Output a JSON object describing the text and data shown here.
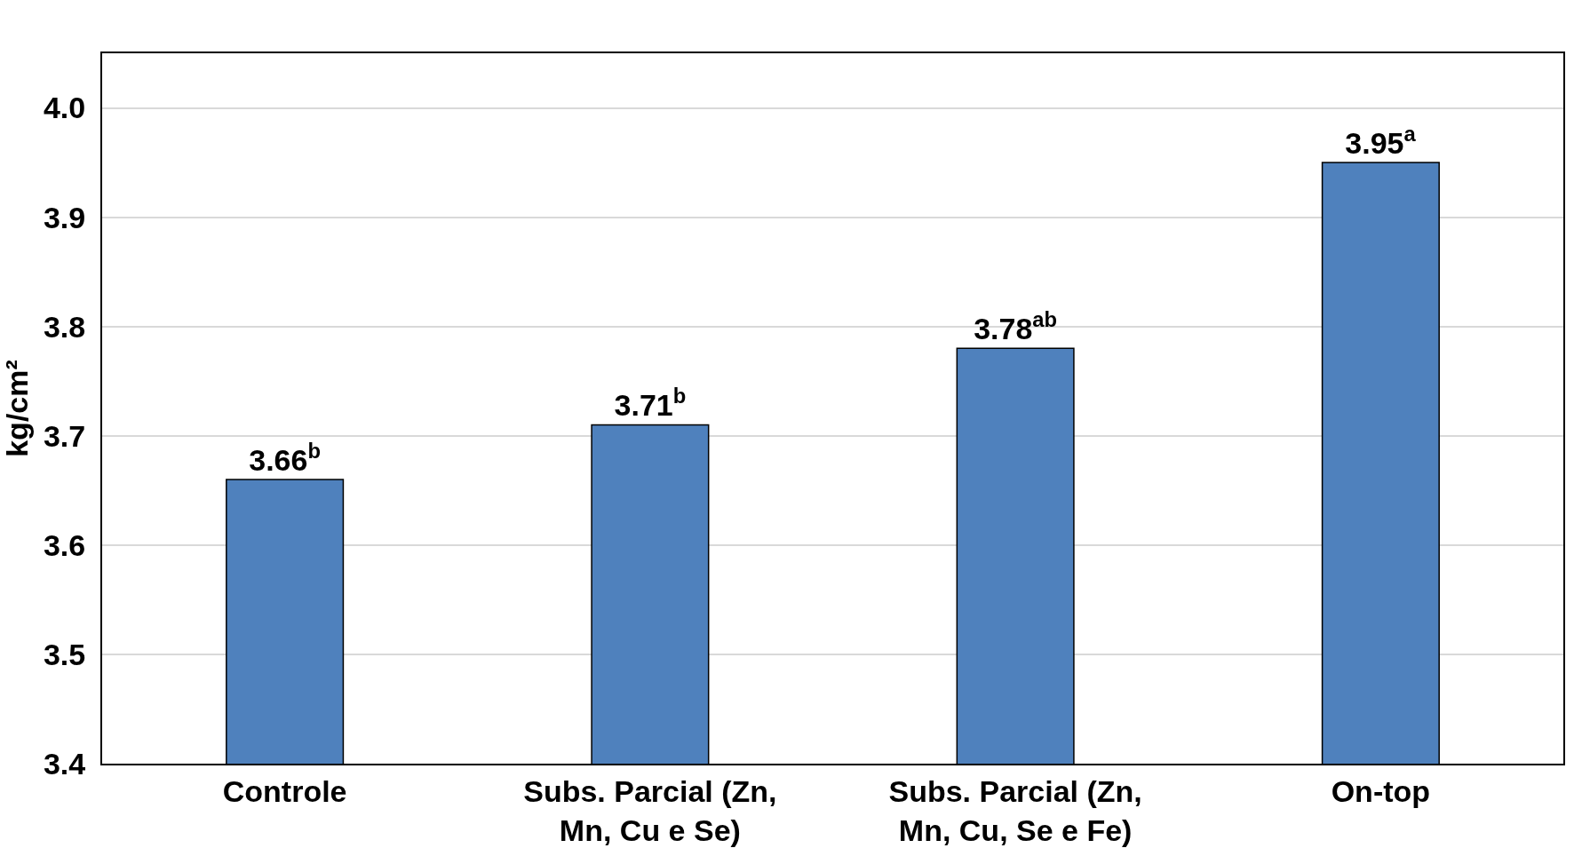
{
  "chart_data": {
    "type": "bar",
    "ylabel": "kg/cm²",
    "categories": [
      "Controle",
      "Subs. Parcial (Zn, Mn, Cu e Se)",
      "Subs. Parcial (Zn, Mn, Cu, Se e Fe)",
      "On-top"
    ],
    "values": [
      3.66,
      3.71,
      3.78,
      3.95
    ],
    "value_labels": [
      "3.66$^{b}$",
      "3.71$^{b}$",
      "3.78$^{ab}$",
      "3.95$^{a}$"
    ],
    "color": "#4f81bd",
    "ylim": [
      3.4,
      4.05
    ],
    "yticks": [
      {
        "value": 3.4,
        "label": "3.4"
      },
      {
        "value": 3.5,
        "label": "3.5"
      },
      {
        "value": 3.6,
        "label": "3.6"
      },
      {
        "value": 3.7,
        "label": "3.7"
      },
      {
        "value": 3.8,
        "label": "3.8"
      },
      {
        "value": 3.9,
        "label": "3.9"
      },
      {
        "value": 4.0,
        "label": "4.0"
      }
    ],
    "grid": "y",
    "legend": false
  }
}
